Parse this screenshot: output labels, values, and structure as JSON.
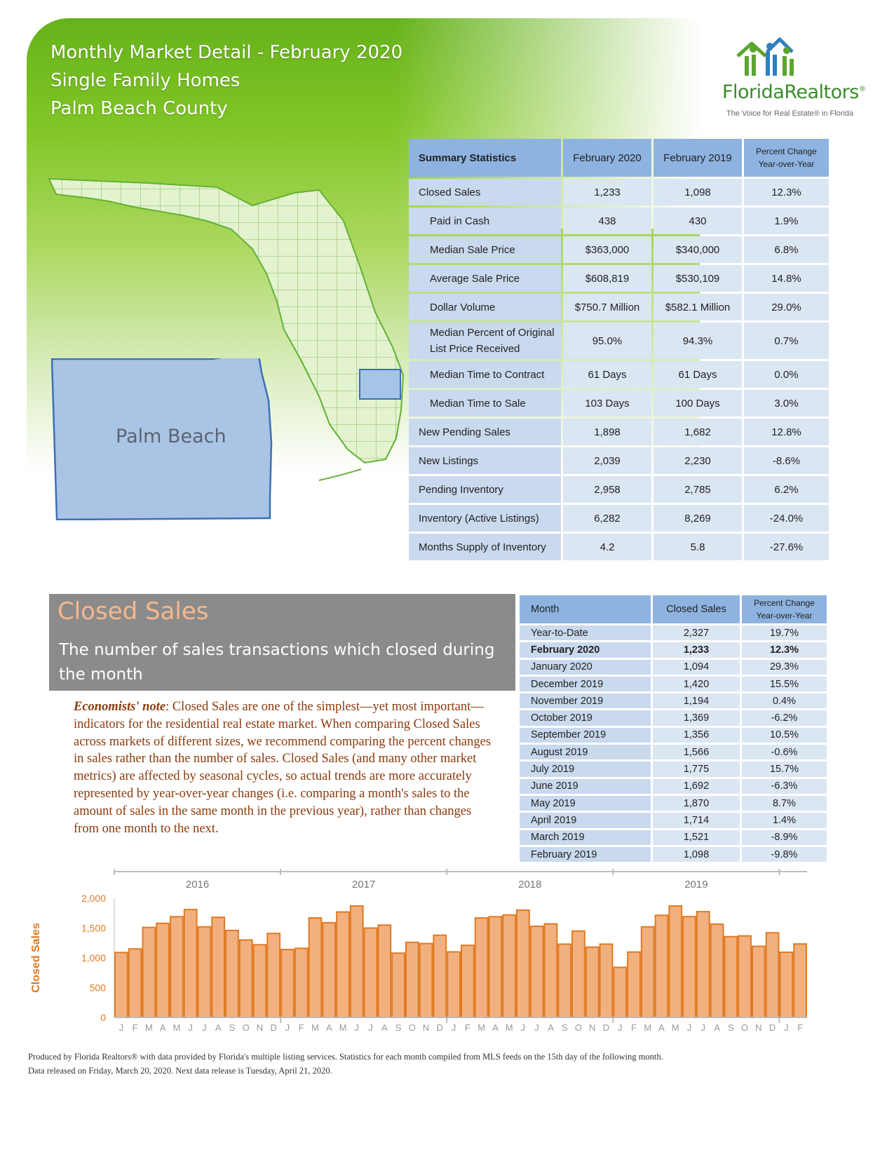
{
  "header": {
    "line1": "Monthly Market Detail - February 2020",
    "line2": "Single Family Homes",
    "line3": "Palm Beach County"
  },
  "logo": {
    "brand": "FloridaRealtors",
    "registered": "®",
    "tagline": "The Voice for Real Estate® in Florida",
    "icon": "houses-people-icon"
  },
  "map": {
    "highlight_label": "Palm Beach"
  },
  "summary": {
    "headers": [
      "Summary Statistics",
      "February 2020",
      "February 2019",
      "Percent Change",
      "Year-over-Year"
    ],
    "rows": [
      {
        "label": "Closed Sales",
        "v2020": "1,233",
        "v2019": "1,098",
        "change": "12.3%"
      },
      {
        "label": "Paid in Cash",
        "v2020": "438",
        "v2019": "430",
        "change": "1.9%"
      },
      {
        "label": "Median Sale Price",
        "v2020": "$363,000",
        "v2019": "$340,000",
        "change": "6.8%"
      },
      {
        "label": "Average Sale Price",
        "v2020": "$608,819",
        "v2019": "$530,109",
        "change": "14.8%"
      },
      {
        "label": "Dollar Volume",
        "v2020": "$750.7 Million",
        "v2019": "$582.1 Million",
        "change": "29.0%"
      },
      {
        "label": "Median Percent of Original",
        "label2": "List Price Received",
        "v2020": "95.0%",
        "v2019": "94.3%",
        "change": "0.7%"
      },
      {
        "label": "Median Time to Contract",
        "v2020": "61 Days",
        "v2019": "61 Days",
        "change": "0.0%"
      },
      {
        "label": "Median Time to Sale",
        "v2020": "103 Days",
        "v2019": "100 Days",
        "change": "3.0%"
      },
      {
        "label": "New Pending Sales",
        "v2020": "1,898",
        "v2019": "1,682",
        "change": "12.8%"
      },
      {
        "label": "New Listings",
        "v2020": "2,039",
        "v2019": "2,230",
        "change": "-8.6%"
      },
      {
        "label": "Pending Inventory",
        "v2020": "2,958",
        "v2019": "2,785",
        "change": "6.2%"
      },
      {
        "label": "Inventory (Active Listings)",
        "v2020": "6,282",
        "v2019": "8,269",
        "change": "-24.0%"
      },
      {
        "label": "Months Supply of Inventory",
        "v2020": "4.2",
        "v2019": "5.8",
        "change": "-27.6%"
      }
    ]
  },
  "closed_sales": {
    "title": "Closed Sales",
    "subtitle": "The number of sales transactions which closed during the month",
    "note_label": "Economists' note",
    "note_text": ": Closed Sales are one of the simplest—yet most important—indicators for the residential real estate market. When comparing Closed Sales across markets of different sizes, we recommend comparing the percent changes in sales rather than the number of sales. Closed Sales (and many other market metrics) are affected by seasonal cycles, so actual trends are more accurately represented by year-over-year changes (i.e. comparing a month's sales to the amount of sales in the same month in the previous year), rather than changes from one month to the next."
  },
  "monthly": {
    "headers": [
      "Month",
      "Closed Sales",
      "Percent Change",
      "Year-over-Year"
    ],
    "rows": [
      {
        "month": "Year-to-Date",
        "sales": "2,327",
        "change": "19.7%"
      },
      {
        "month": "February 2020",
        "sales": "1,233",
        "change": "12.3%"
      },
      {
        "month": "January 2020",
        "sales": "1,094",
        "change": "29.3%"
      },
      {
        "month": "December 2019",
        "sales": "1,420",
        "change": "15.5%"
      },
      {
        "month": "November 2019",
        "sales": "1,194",
        "change": "0.4%"
      },
      {
        "month": "October 2019",
        "sales": "1,369",
        "change": "-6.2%"
      },
      {
        "month": "September 2019",
        "sales": "1,356",
        "change": "10.5%"
      },
      {
        "month": "August 2019",
        "sales": "1,566",
        "change": "-0.6%"
      },
      {
        "month": "July 2019",
        "sales": "1,775",
        "change": "15.7%"
      },
      {
        "month": "June 2019",
        "sales": "1,692",
        "change": "-6.3%"
      },
      {
        "month": "May 2019",
        "sales": "1,870",
        "change": "8.7%"
      },
      {
        "month": "April 2019",
        "sales": "1,714",
        "change": "1.4%"
      },
      {
        "month": "March 2019",
        "sales": "1,521",
        "change": "-8.9%"
      },
      {
        "month": "February 2019",
        "sales": "1,098",
        "change": "-9.8%"
      }
    ]
  },
  "chart_data": {
    "type": "bar",
    "ylabel": "Closed Sales",
    "ylim": [
      0,
      2000
    ],
    "yticks": [
      "0",
      "500",
      "1,000",
      "1,500",
      "2,000"
    ],
    "ytick_values": [
      0,
      500,
      1000,
      1500,
      2000
    ],
    "years": [
      "2016",
      "2017",
      "2018",
      "2019"
    ],
    "categories": [
      "J",
      "F",
      "M",
      "A",
      "M",
      "J",
      "J",
      "A",
      "S",
      "O",
      "N",
      "D",
      "J",
      "F",
      "M",
      "A",
      "M",
      "J",
      "J",
      "A",
      "S",
      "O",
      "N",
      "D",
      "J",
      "F",
      "M",
      "A",
      "M",
      "J",
      "J",
      "A",
      "S",
      "O",
      "N",
      "D",
      "J",
      "F",
      "M",
      "A",
      "M",
      "J",
      "J",
      "A",
      "S",
      "O",
      "N",
      "D",
      "J",
      "F"
    ],
    "values": [
      1090,
      1150,
      1510,
      1580,
      1690,
      1810,
      1520,
      1680,
      1460,
      1300,
      1220,
      1410,
      1140,
      1160,
      1670,
      1590,
      1770,
      1870,
      1500,
      1550,
      1080,
      1260,
      1240,
      1380,
      1100,
      1210,
      1670,
      1690,
      1720,
      1800,
      1530,
      1570,
      1230,
      1450,
      1180,
      1230,
      840,
      1098,
      1521,
      1714,
      1870,
      1692,
      1775,
      1566,
      1356,
      1369,
      1194,
      1420,
      1094,
      1233
    ],
    "grid": false,
    "colors": {
      "bar_fill": "#f2b07f",
      "bar_stroke": "#e07a22",
      "axis_label": "#e07a22"
    }
  },
  "footer": {
    "line1": "Produced by Florida Realtors® with data provided by Florida's multiple listing services. Statistics for each month compiled from MLS feeds on the 15th day of the following month.",
    "line2": "Data released on Friday, March 20, 2020. Next data release is Tuesday, April 21, 2020."
  }
}
